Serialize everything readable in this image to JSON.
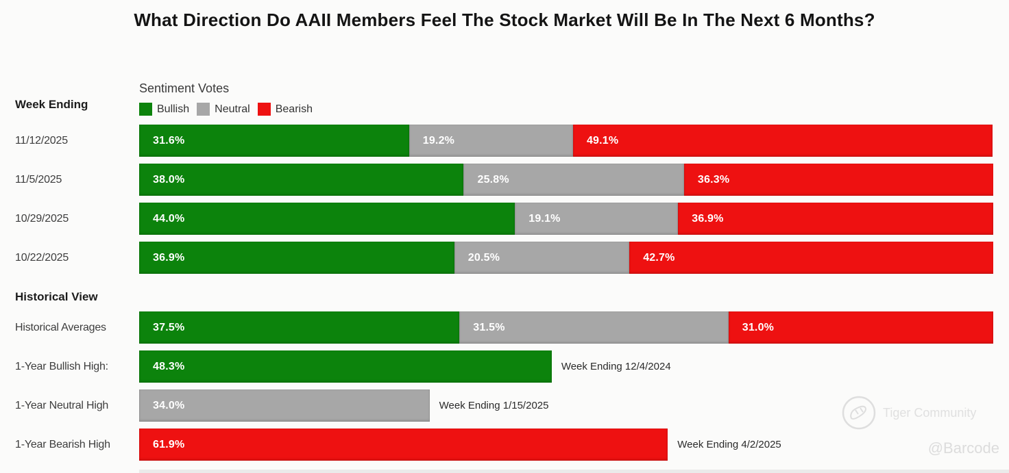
{
  "title": "What Direction Do AAII Members Feel The Stock Market Will Be In The Next 6 Months?",
  "colors": {
    "bullish": "#0c830c",
    "neutral": "#a7a7a7",
    "bearish": "#ee1111"
  },
  "header": {
    "week_ending_label": "Week Ending",
    "sentiment_votes_label": "Sentiment Votes",
    "historical_view_label": "Historical View"
  },
  "legend": [
    {
      "key": "bullish",
      "label": "Bullish"
    },
    {
      "key": "neutral",
      "label": "Neutral"
    },
    {
      "key": "bearish",
      "label": "Bearish"
    }
  ],
  "weekly_rows": [
    {
      "label": "11/12/2025",
      "segments": [
        {
          "key": "bullish",
          "pct": 31.6,
          "text": "31.6%"
        },
        {
          "key": "neutral",
          "pct": 19.2,
          "text": "19.2%"
        },
        {
          "key": "bearish",
          "pct": 49.1,
          "text": "49.1%"
        }
      ]
    },
    {
      "label": "11/5/2025",
      "segments": [
        {
          "key": "bullish",
          "pct": 38.0,
          "text": "38.0%"
        },
        {
          "key": "neutral",
          "pct": 25.8,
          "text": "25.8%"
        },
        {
          "key": "bearish",
          "pct": 36.3,
          "text": "36.3%"
        }
      ]
    },
    {
      "label": "10/29/2025",
      "segments": [
        {
          "key": "bullish",
          "pct": 44.0,
          "text": "44.0%"
        },
        {
          "key": "neutral",
          "pct": 19.1,
          "text": "19.1%"
        },
        {
          "key": "bearish",
          "pct": 36.9,
          "text": "36.9%"
        }
      ]
    },
    {
      "label": "10/22/2025",
      "segments": [
        {
          "key": "bullish",
          "pct": 36.9,
          "text": "36.9%"
        },
        {
          "key": "neutral",
          "pct": 20.5,
          "text": "20.5%"
        },
        {
          "key": "bearish",
          "pct": 42.7,
          "text": "42.7%"
        }
      ]
    }
  ],
  "historical_rows": [
    {
      "label": "Historical Averages",
      "segments": [
        {
          "key": "bullish",
          "pct": 37.5,
          "text": "37.5%"
        },
        {
          "key": "neutral",
          "pct": 31.5,
          "text": "31.5%"
        },
        {
          "key": "bearish",
          "pct": 31.0,
          "text": "31.0%"
        }
      ]
    },
    {
      "label": "1-Year Bullish High:",
      "segments": [
        {
          "key": "bullish",
          "pct": 48.3,
          "text": "48.3%"
        }
      ],
      "annotation": "Week Ending 12/4/2024"
    },
    {
      "label": "1-Year Neutral High",
      "segments": [
        {
          "key": "neutral",
          "pct": 34.0,
          "text": "34.0%"
        }
      ],
      "annotation": "Week Ending 1/15/2025"
    },
    {
      "label": "1-Year Bearish High",
      "segments": [
        {
          "key": "bearish",
          "pct": 61.9,
          "text": "61.9%"
        }
      ],
      "annotation": "Week Ending 4/2/2025"
    }
  ],
  "watermark": {
    "community": "Tiger Community",
    "handle": "@Barcode"
  },
  "chart_data": {
    "type": "bar",
    "subtype": "horizontal-stacked-100pct",
    "title": "What Direction Do AAII Members Feel The Stock Market Will Be In The Next 6 Months?",
    "legend_title": "Sentiment Votes",
    "legend": [
      "Bullish",
      "Neutral",
      "Bearish"
    ],
    "legend_colors": [
      "#0c830c",
      "#a7a7a7",
      "#ee1111"
    ],
    "legend_position": "top-left",
    "x_range_pct": [
      0,
      100
    ],
    "grid": false,
    "groups": [
      {
        "name": "Week Ending",
        "categories": [
          "11/12/2025",
          "11/5/2025",
          "10/29/2025",
          "10/22/2025"
        ],
        "series": [
          {
            "name": "Bullish",
            "values": [
              31.6,
              38.0,
              44.0,
              36.9
            ]
          },
          {
            "name": "Neutral",
            "values": [
              19.2,
              25.8,
              19.1,
              20.5
            ]
          },
          {
            "name": "Bearish",
            "values": [
              49.1,
              36.3,
              36.9,
              42.7
            ]
          }
        ]
      },
      {
        "name": "Historical View",
        "categories": [
          "Historical Averages",
          "1-Year Bullish High:",
          "1-Year Neutral High",
          "1-Year Bearish High"
        ],
        "rows": [
          {
            "category": "Historical Averages",
            "bullish": 37.5,
            "neutral": 31.5,
            "bearish": 31.0
          },
          {
            "category": "1-Year Bullish High:",
            "series": "Bullish",
            "value": 48.3,
            "annotation": "Week Ending 12/4/2024"
          },
          {
            "category": "1-Year Neutral High",
            "series": "Neutral",
            "value": 34.0,
            "annotation": "Week Ending 1/15/2025"
          },
          {
            "category": "1-Year Bearish High",
            "series": "Bearish",
            "value": 61.9,
            "annotation": "Week Ending 4/2/2025"
          }
        ]
      }
    ]
  }
}
